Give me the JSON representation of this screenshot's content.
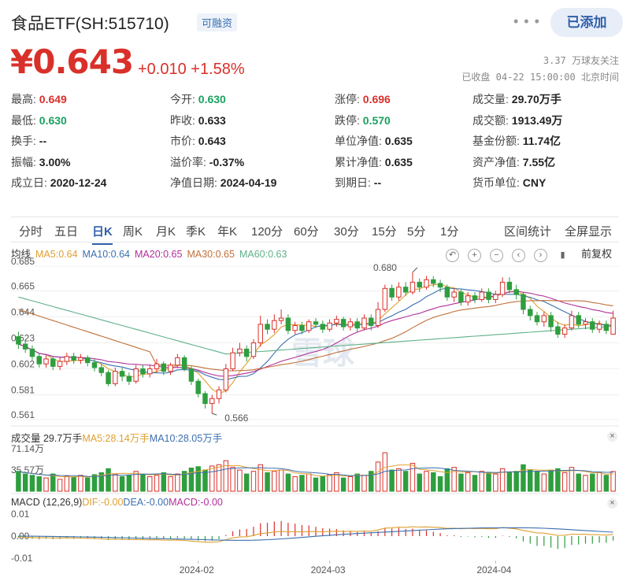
{
  "header": {
    "title": "食品ETF(SH:515710)",
    "tag": "可融资",
    "more": "• • •",
    "add_button": "已添加"
  },
  "quote": {
    "price": "¥0.643",
    "change": "+0.010 +1.58%",
    "followers": "3.37 万球友关注",
    "status": "已收盘 04-22 15:00:00 北京时间"
  },
  "stats": [
    [
      {
        "label": "最高:",
        "value": "0.649",
        "color": "up"
      },
      {
        "label": "今开:",
        "value": "0.630",
        "color": "down"
      },
      {
        "label": "涨停:",
        "value": "0.696",
        "color": "up"
      },
      {
        "label": "成交量:",
        "value": "29.70万手",
        "color": ""
      }
    ],
    [
      {
        "label": "最低:",
        "value": "0.630",
        "color": "down"
      },
      {
        "label": "昨收:",
        "value": "0.633",
        "color": ""
      },
      {
        "label": "跌停:",
        "value": "0.570",
        "color": "down"
      },
      {
        "label": "成交额:",
        "value": "1913.49万",
        "color": ""
      }
    ],
    [
      {
        "label": "换手:",
        "value": "--",
        "color": ""
      },
      {
        "label": "市价:",
        "value": "0.643",
        "color": ""
      },
      {
        "label": "单位净值:",
        "value": "0.635",
        "color": ""
      },
      {
        "label": "基金份额:",
        "value": "11.74亿",
        "color": ""
      }
    ],
    [
      {
        "label": "振幅:",
        "value": "3.00%",
        "color": ""
      },
      {
        "label": "溢价率:",
        "value": "-0.37%",
        "color": ""
      },
      {
        "label": "累计净值:",
        "value": "0.635",
        "color": ""
      },
      {
        "label": "资产净值:",
        "value": "7.55亿",
        "color": ""
      }
    ],
    [
      {
        "label": "成立日:",
        "value": "2020-12-24",
        "color": ""
      },
      {
        "label": "净值日期:",
        "value": "2024-04-19",
        "color": ""
      },
      {
        "label": "到期日:",
        "value": "--",
        "color": ""
      },
      {
        "label": "货币单位:",
        "value": "CNY",
        "color": ""
      }
    ]
  ],
  "tabs": [
    "分时",
    "五日",
    "日K",
    "周K",
    "月K",
    "季K",
    "年K",
    "120分",
    "60分",
    "30分",
    "15分",
    "5分",
    "1分"
  ],
  "active_tab": "日K",
  "tab_right": [
    "区间统计",
    "全屏显示"
  ],
  "ma_legend": {
    "label": "均线",
    "items": [
      {
        "text": "MA5:0.64",
        "color": "#e0a030"
      },
      {
        "text": "MA10:0.64",
        "color": "#3a6fb0"
      },
      {
        "text": "MA20:0.65",
        "color": "#b0309a"
      },
      {
        "text": "MA30:0.65",
        "color": "#c0703a"
      },
      {
        "text": "MA60:0.63",
        "color": "#5fb08a"
      }
    ]
  },
  "chart_tools": {
    "icons": [
      "undo-icon",
      "zoom-in-icon",
      "zoom-out-icon",
      "pan-left-icon",
      "pan-right-icon",
      "candle-icon"
    ],
    "fq_label": "前复权"
  },
  "volume_legend": {
    "label": "成交量 29.7万手",
    "items": [
      {
        "text": "MA5:28.14万手",
        "color": "#e0a030"
      },
      {
        "text": "MA10:28.05万手",
        "color": "#3a6fb0"
      }
    ]
  },
  "macd_legend": {
    "label": "MACD (12,26,9)",
    "items": [
      {
        "text": "DIF:-0.00",
        "color": "#e0a030"
      },
      {
        "text": "DEA:-0.00",
        "color": "#3a6fb0"
      },
      {
        "text": "MACD:-0.00",
        "color": "#b0309a"
      }
    ]
  },
  "watermark": "雪球",
  "chart_data": [
    {
      "type": "candlestick",
      "y_ticks": [
        "0.685",
        "0.665",
        "0.644",
        "0.623",
        "0.602",
        "0.581",
        "0.561"
      ],
      "ylim": [
        0.561,
        0.685
      ],
      "annotations": [
        {
          "label": "0.680",
          "value": 0.68
        },
        {
          "label": "0.566",
          "value": 0.566
        }
      ],
      "x_ticks": [
        "2024-02",
        "2024-03",
        "2024-04"
      ],
      "candles": [
        [
          0.628,
          0.622,
          0.632,
          0.618
        ],
        [
          0.622,
          0.618,
          0.626,
          0.615
        ],
        [
          0.618,
          0.612,
          0.621,
          0.609
        ],
        [
          0.612,
          0.606,
          0.615,
          0.603
        ],
        [
          0.606,
          0.61,
          0.613,
          0.603
        ],
        [
          0.61,
          0.604,
          0.612,
          0.601
        ],
        [
          0.604,
          0.608,
          0.611,
          0.601
        ],
        [
          0.608,
          0.612,
          0.615,
          0.605
        ],
        [
          0.612,
          0.609,
          0.615,
          0.606
        ],
        [
          0.609,
          0.611,
          0.614,
          0.606
        ],
        [
          0.611,
          0.607,
          0.613,
          0.604
        ],
        [
          0.607,
          0.603,
          0.61,
          0.6
        ],
        [
          0.603,
          0.599,
          0.606,
          0.596
        ],
        [
          0.599,
          0.59,
          0.601,
          0.588
        ],
        [
          0.59,
          0.6,
          0.603,
          0.588
        ],
        [
          0.6,
          0.596,
          0.603,
          0.592
        ],
        [
          0.596,
          0.592,
          0.599,
          0.589
        ],
        [
          0.592,
          0.602,
          0.605,
          0.59
        ],
        [
          0.602,
          0.598,
          0.605,
          0.595
        ],
        [
          0.598,
          0.602,
          0.605,
          0.595
        ],
        [
          0.602,
          0.606,
          0.61,
          0.599
        ],
        [
          0.606,
          0.6,
          0.608,
          0.597
        ],
        [
          0.6,
          0.605,
          0.607,
          0.597
        ],
        [
          0.605,
          0.611,
          0.614,
          0.603
        ],
        [
          0.611,
          0.602,
          0.613,
          0.6
        ],
        [
          0.602,
          0.592,
          0.604,
          0.589
        ],
        [
          0.592,
          0.582,
          0.594,
          0.579
        ],
        [
          0.582,
          0.574,
          0.584,
          0.57
        ],
        [
          0.574,
          0.578,
          0.581,
          0.566
        ],
        [
          0.578,
          0.585,
          0.588,
          0.574
        ],
        [
          0.585,
          0.602,
          0.606,
          0.583
        ],
        [
          0.602,
          0.615,
          0.619,
          0.6
        ],
        [
          0.615,
          0.618,
          0.623,
          0.612
        ],
        [
          0.618,
          0.612,
          0.621,
          0.608
        ],
        [
          0.612,
          0.623,
          0.626,
          0.61
        ],
        [
          0.623,
          0.638,
          0.645,
          0.62
        ],
        [
          0.638,
          0.634,
          0.642,
          0.63
        ],
        [
          0.634,
          0.641,
          0.646,
          0.631
        ],
        [
          0.641,
          0.643,
          0.65,
          0.638
        ],
        [
          0.643,
          0.633,
          0.646,
          0.63
        ],
        [
          0.633,
          0.637,
          0.64,
          0.63
        ],
        [
          0.637,
          0.633,
          0.64,
          0.63
        ],
        [
          0.633,
          0.64,
          0.642,
          0.631
        ],
        [
          0.64,
          0.638,
          0.643,
          0.635
        ],
        [
          0.638,
          0.634,
          0.641,
          0.631
        ],
        [
          0.634,
          0.639,
          0.642,
          0.632
        ],
        [
          0.639,
          0.642,
          0.645,
          0.636
        ],
        [
          0.642,
          0.636,
          0.644,
          0.633
        ],
        [
          0.636,
          0.64,
          0.643,
          0.633
        ],
        [
          0.64,
          0.635,
          0.643,
          0.632
        ],
        [
          0.635,
          0.643,
          0.646,
          0.633
        ],
        [
          0.643,
          0.637,
          0.646,
          0.633
        ],
        [
          0.637,
          0.65,
          0.656,
          0.635
        ],
        [
          0.65,
          0.667,
          0.67,
          0.648
        ],
        [
          0.667,
          0.66,
          0.67,
          0.657
        ],
        [
          0.66,
          0.668,
          0.672,
          0.657
        ],
        [
          0.668,
          0.664,
          0.672,
          0.661
        ],
        [
          0.664,
          0.672,
          0.68,
          0.662
        ],
        [
          0.672,
          0.668,
          0.675,
          0.664
        ],
        [
          0.668,
          0.674,
          0.677,
          0.666
        ],
        [
          0.674,
          0.671,
          0.677,
          0.668
        ],
        [
          0.671,
          0.668,
          0.674,
          0.664
        ],
        [
          0.668,
          0.66,
          0.67,
          0.657
        ],
        [
          0.66,
          0.664,
          0.667,
          0.656
        ],
        [
          0.664,
          0.656,
          0.666,
          0.653
        ],
        [
          0.656,
          0.661,
          0.664,
          0.653
        ],
        [
          0.661,
          0.658,
          0.664,
          0.655
        ],
        [
          0.658,
          0.664,
          0.667,
          0.656
        ],
        [
          0.664,
          0.658,
          0.667,
          0.655
        ],
        [
          0.658,
          0.662,
          0.665,
          0.655
        ],
        [
          0.662,
          0.672,
          0.676,
          0.66
        ],
        [
          0.672,
          0.666,
          0.676,
          0.663
        ],
        [
          0.666,
          0.662,
          0.67,
          0.658
        ],
        [
          0.662,
          0.65,
          0.664,
          0.646
        ],
        [
          0.65,
          0.645,
          0.653,
          0.641
        ],
        [
          0.645,
          0.64,
          0.648,
          0.637
        ],
        [
          0.64,
          0.645,
          0.648,
          0.636
        ],
        [
          0.645,
          0.636,
          0.648,
          0.632
        ],
        [
          0.636,
          0.63,
          0.64,
          0.627
        ],
        [
          0.63,
          0.635,
          0.638,
          0.627
        ],
        [
          0.635,
          0.645,
          0.649,
          0.633
        ],
        [
          0.645,
          0.638,
          0.648,
          0.635
        ],
        [
          0.638,
          0.64,
          0.643,
          0.634
        ],
        [
          0.64,
          0.634,
          0.643,
          0.631
        ],
        [
          0.634,
          0.638,
          0.641,
          0.631
        ],
        [
          0.638,
          0.633,
          0.641,
          0.63
        ],
        [
          0.63,
          0.643,
          0.649,
          0.63
        ]
      ]
    },
    {
      "type": "bar",
      "y_ticks": [
        "71.14万",
        "35.57万"
      ],
      "ylim": [
        0,
        71.14
      ],
      "values": [
        30,
        26,
        24,
        22,
        20,
        26,
        18,
        23,
        21,
        24,
        20,
        25,
        28,
        34,
        26,
        22,
        24,
        30,
        26,
        22,
        24,
        28,
        22,
        26,
        30,
        35,
        37,
        32,
        38,
        40,
        46,
        36,
        32,
        26,
        30,
        40,
        28,
        30,
        32,
        26,
        22,
        24,
        26,
        20,
        22,
        25,
        28,
        20,
        22,
        26,
        24,
        30,
        44,
        58,
        32,
        34,
        30,
        42,
        26,
        30,
        28,
        22,
        34,
        36,
        26,
        28,
        24,
        30,
        28,
        26,
        34,
        28,
        30,
        40,
        32,
        30,
        26,
        32,
        34,
        28,
        36,
        26,
        24,
        26,
        28,
        24,
        29.7
      ]
    },
    {
      "type": "bar",
      "y_ticks": [
        "0.01",
        "0.00",
        "-0.01"
      ],
      "ylim": [
        -0.011,
        0.011
      ],
      "values": [
        -0.0008,
        -0.001,
        -0.0012,
        -0.0014,
        -0.0012,
        -0.0014,
        -0.0013,
        -0.0011,
        -0.0012,
        -0.0011,
        -0.0012,
        -0.0013,
        -0.0014,
        -0.0017,
        -0.0014,
        -0.0015,
        -0.0016,
        -0.0013,
        -0.0014,
        -0.0013,
        -0.0011,
        -0.0013,
        -0.0012,
        -0.0009,
        -0.0012,
        -0.0016,
        -0.002,
        -0.0023,
        -0.0021,
        -0.0014,
        0.0005,
        0.0022,
        0.003,
        0.0032,
        0.0042,
        0.0058,
        0.006,
        0.0066,
        0.0068,
        0.006,
        0.0056,
        0.005,
        0.0048,
        0.0042,
        0.0036,
        0.0034,
        0.0032,
        0.0026,
        0.0024,
        0.0018,
        0.002,
        0.0014,
        0.0022,
        0.0036,
        0.0034,
        0.0038,
        0.0032,
        0.0034,
        0.0028,
        0.0026,
        0.002,
        0.0014,
        0.0004,
        0.0004,
        -0.0004,
        -0.0002,
        -0.0005,
        -0.0004,
        -0.0008,
        -0.0008,
        0.0002,
        -0.0004,
        -0.001,
        -0.0024,
        -0.0034,
        -0.0044,
        -0.0044,
        -0.0052,
        -0.0058,
        -0.0054,
        -0.004,
        -0.0038,
        -0.0034,
        -0.0034,
        -0.003,
        -0.003,
        -0.002
      ]
    }
  ]
}
